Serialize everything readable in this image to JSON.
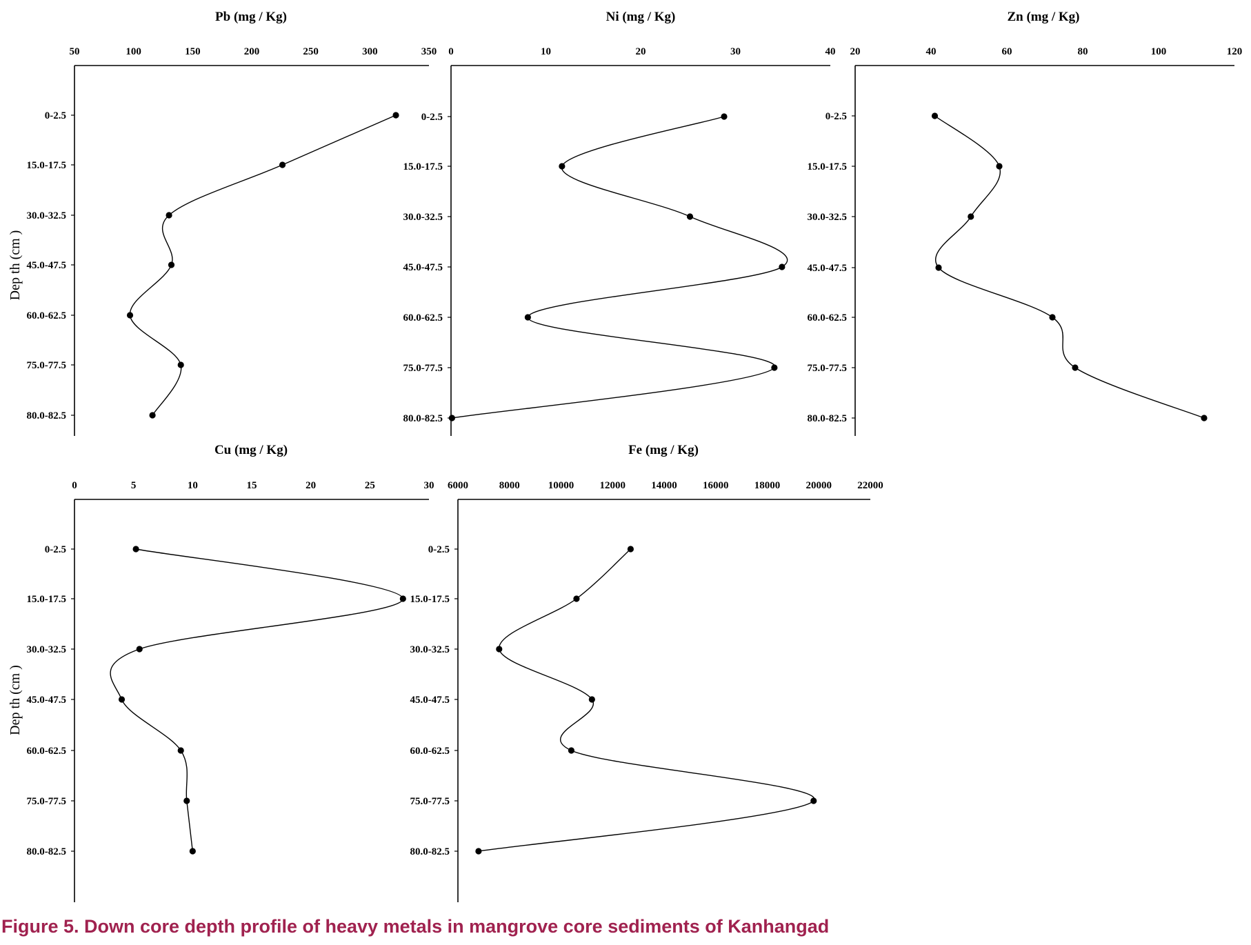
{
  "caption": "Figure 5. Down core depth profile of heavy metals in mangrove core sediments of Kanhangad",
  "colors": {
    "caption": "#a0224f",
    "ink": "#000000"
  },
  "depth_categories": [
    "0-2.5",
    "15.0-17.5",
    "30.0-32.5",
    "45.0-47.5",
    "60.0-62.5",
    "75.0-77.5",
    "80.0-82.5"
  ],
  "depth_axis_label": "Dep th (cm )",
  "chart_data": [
    {
      "type": "line",
      "title": "Pb (mg / Kg)",
      "xlabel": "Pb (mg / Kg)",
      "ylabel": "Dep th (cm )",
      "xlim": [
        50,
        350
      ],
      "xticks": [
        "50",
        "100",
        "150",
        "200",
        "250",
        "300",
        "350"
      ],
      "categories": [
        "0-2.5",
        "15.0-17.5",
        "30.0-32.5",
        "45.0-47.5",
        "60.0-62.5",
        "75.0-77.5",
        "80.0-82.5"
      ],
      "values": [
        322,
        226,
        130,
        132,
        97,
        140,
        116
      ]
    },
    {
      "type": "line",
      "title": "Ni (mg / Kg)",
      "xlabel": "Ni (mg / Kg)",
      "ylabel": "",
      "xlim": [
        0,
        40
      ],
      "xticks": [
        "0",
        "10",
        "20",
        "30",
        "40"
      ],
      "categories": [
        "0-2.5",
        "15.0-17.5",
        "30.0-32.5",
        "45.0-47.5",
        "60.0-62.5",
        "75.0-77.5",
        "80.0-82.5"
      ],
      "values": [
        28.8,
        11.7,
        25.2,
        34.9,
        8.1,
        34.1,
        0.1
      ]
    },
    {
      "type": "line",
      "title": "Zn (mg / Kg)",
      "xlabel": "Zn (mg / Kg)",
      "ylabel": "",
      "xlim": [
        20,
        120
      ],
      "xticks": [
        "20",
        "40",
        "60",
        "80",
        "100",
        "120"
      ],
      "categories": [
        "0-2.5",
        "15.0-17.5",
        "30.0-32.5",
        "45.0-47.5",
        "60.0-62.5",
        "75.0-77.5",
        "80.0-82.5"
      ],
      "values": [
        41,
        58,
        50.5,
        42,
        72,
        78,
        112
      ]
    },
    {
      "type": "line",
      "title": "Cu (mg / Kg)",
      "xlabel": "Cu (mg / Kg)",
      "ylabel": "Dep th (cm )",
      "xlim": [
        0,
        30
      ],
      "xticks": [
        "0",
        "5",
        "10",
        "15",
        "20",
        "25",
        "30"
      ],
      "categories": [
        "0-2.5",
        "15.0-17.5",
        "30.0-32.5",
        "45.0-47.5",
        "60.0-62.5",
        "75.0-77.5",
        "80.0-82.5"
      ],
      "values": [
        5.2,
        27.8,
        5.5,
        4.0,
        9.0,
        9.5,
        10.0
      ]
    },
    {
      "type": "line",
      "title": "Fe (mg / Kg)",
      "xlabel": "Fe (mg / Kg)",
      "ylabel": "",
      "xlim": [
        6000,
        22000
      ],
      "xticks": [
        "6000",
        "8000",
        "10000",
        "12000",
        "14000",
        "16000",
        "18000",
        "20000",
        "22000"
      ],
      "categories": [
        "0-2.5",
        "15.0-17.5",
        "30.0-32.5",
        "45.0-47.5",
        "60.0-62.5",
        "75.0-77.5",
        "80.0-82.5"
      ],
      "values": [
        12700,
        10600,
        7600,
        11200,
        10400,
        19800,
        6800
      ]
    }
  ]
}
